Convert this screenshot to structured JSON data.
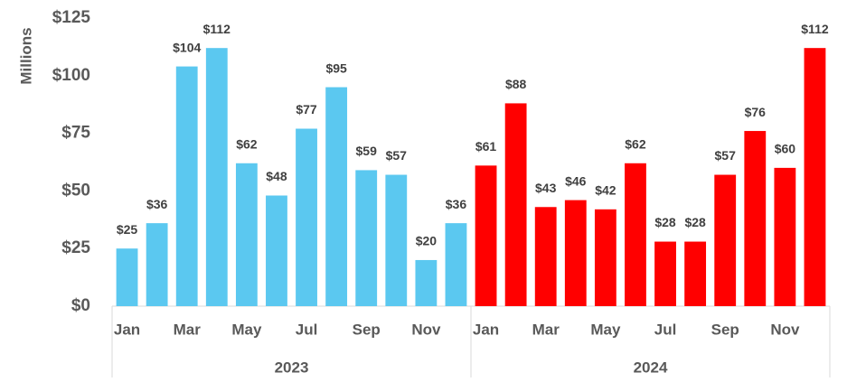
{
  "chart_data": {
    "type": "bar",
    "y_label": "Millions",
    "categories": [
      "Jan",
      null,
      "Mar",
      null,
      "May",
      null,
      "Jul",
      null,
      "Sep",
      null,
      "Nov",
      null
    ],
    "series": [
      {
        "name": "2023",
        "color": "#5bc8f0",
        "values": [
          25,
          36,
          104,
          112,
          62,
          48,
          77,
          95,
          59,
          57,
          20,
          36
        ],
        "value_labels": [
          "$25",
          "$36",
          "$104",
          "$112",
          "$62",
          "$48",
          "$77",
          "$95",
          "$59",
          "$57",
          "$20",
          "$36"
        ]
      },
      {
        "name": "2024",
        "color": "#ff0000",
        "values": [
          61,
          88,
          43,
          46,
          42,
          62,
          28,
          28,
          57,
          76,
          60,
          112
        ],
        "value_labels": [
          "$61",
          "$88",
          "$43",
          "$46",
          "$42",
          "$62",
          "$28",
          "$28",
          "$57",
          "$76",
          "$60",
          "$112"
        ]
      }
    ],
    "ylim": [
      0,
      125
    ],
    "yticks": [
      {
        "value": 0,
        "label": "$0"
      },
      {
        "value": 25,
        "label": "$25"
      },
      {
        "value": 50,
        "label": "$50"
      },
      {
        "value": 75,
        "label": "$75"
      },
      {
        "value": 100,
        "label": "$100"
      },
      {
        "value": 125,
        "label": "$125"
      }
    ]
  }
}
